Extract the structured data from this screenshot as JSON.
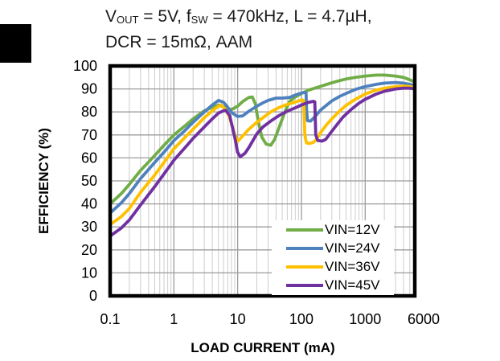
{
  "page": {
    "background": "#ffffff",
    "black_tab_marker": true
  },
  "chart_data": {
    "type": "line",
    "title": {
      "line1_segments": [
        {
          "text": "V"
        },
        {
          "text": "OUT",
          "sub": true
        },
        {
          "text": " = 5V, f"
        },
        {
          "text": "SW",
          "sub": true
        },
        {
          "text": " = 470kHz, L = 4.7µH,"
        }
      ],
      "line2": "DCR = 15mΩ, AAM"
    },
    "xlabel": "LOAD CURRENT (mA)",
    "ylabel": "EFFICIENCY (%)",
    "x_scale": "log",
    "xlim": [
      0.1,
      6000
    ],
    "ylim": [
      0,
      100
    ],
    "x_ticks": [
      {
        "value": 0.1,
        "label": "0.1"
      },
      {
        "value": 1,
        "label": "1"
      },
      {
        "value": 10,
        "label": "10"
      },
      {
        "value": 100,
        "label": "100"
      },
      {
        "value": 1000,
        "label": "1000"
      },
      {
        "value": 6000,
        "label": "6000",
        "dx": 11
      }
    ],
    "y_ticks": [
      {
        "value": 0,
        "label": "0"
      },
      {
        "value": 10,
        "label": "10"
      },
      {
        "value": 20,
        "label": "20"
      },
      {
        "value": 30,
        "label": "30"
      },
      {
        "value": 40,
        "label": "40"
      },
      {
        "value": 50,
        "label": "50"
      },
      {
        "value": 60,
        "label": "60"
      },
      {
        "value": 70,
        "label": "70"
      },
      {
        "value": 80,
        "label": "80"
      },
      {
        "value": 90,
        "label": "90"
      },
      {
        "value": 100,
        "label": "100"
      }
    ],
    "grid": {
      "show": true,
      "major_color": "#9b9b9b",
      "minor_color": "#cdcdcd",
      "border_color": "#000000"
    },
    "legend": {
      "position": "inside-bottom-right",
      "entries": [
        "VIN=12V",
        "VIN=24V",
        "VIN=36V",
        "VIN=45V"
      ]
    },
    "series": [
      {
        "name": "VIN=12V",
        "color": "#70AD47",
        "x": [
          0.1,
          0.15,
          0.2,
          0.3,
          0.5,
          0.7,
          1,
          1.5,
          2,
          3,
          4,
          5,
          6,
          7,
          8,
          10,
          12,
          15,
          17,
          19,
          21,
          24,
          28,
          33,
          38,
          45,
          55,
          65,
          80,
          100,
          130,
          170,
          250,
          350,
          500,
          700,
          1000,
          1500,
          2000,
          3000,
          4000,
          5000,
          6000
        ],
        "y": [
          40,
          44.5,
          48.5,
          54.5,
          61,
          65.5,
          70,
          74,
          77,
          80.5,
          82,
          83,
          82.2,
          81.2,
          81,
          82.5,
          84.5,
          86.3,
          86.5,
          83.5,
          76,
          69,
          66,
          65.5,
          68,
          73.5,
          80,
          84.5,
          86.5,
          88,
          89.5,
          90.5,
          92,
          93.2,
          94.3,
          95,
          95.6,
          96,
          96,
          95.6,
          95,
          94,
          93
        ]
      },
      {
        "name": "VIN=24V",
        "color": "#4E81BD",
        "x": [
          0.1,
          0.15,
          0.2,
          0.3,
          0.5,
          0.7,
          1,
          1.5,
          2,
          3,
          4,
          5,
          6,
          7,
          8,
          10,
          12,
          15,
          20,
          25,
          30,
          40,
          50,
          65,
          80,
          100,
          110,
          118,
          121,
          125,
          140,
          170,
          200,
          250,
          300,
          400,
          500,
          700,
          1000,
          1500,
          2000,
          3000,
          4000,
          5000,
          6000
        ],
        "y": [
          36,
          40.5,
          44.5,
          51,
          58,
          62.5,
          67.5,
          72,
          75.5,
          80,
          83,
          85,
          84.2,
          82,
          79.8,
          78,
          78.3,
          80.3,
          82.5,
          84,
          85,
          86,
          86,
          86.3,
          87.3,
          88.2,
          88.5,
          88.3,
          80,
          76.2,
          76,
          78.5,
          80.8,
          83,
          84.8,
          86.8,
          88,
          89.8,
          91,
          92,
          92.5,
          92.8,
          92.5,
          92,
          91.5
        ]
      },
      {
        "name": "VIN=36V",
        "color": "#FFC000",
        "x": [
          0.1,
          0.15,
          0.2,
          0.3,
          0.5,
          0.7,
          1,
          1.5,
          2,
          3,
          4,
          5,
          5.5,
          6.5,
          7.5,
          9,
          10,
          12,
          15,
          20,
          25,
          33,
          45,
          60,
          80,
          95,
          105,
          109,
          113,
          120,
          135,
          155,
          175,
          200,
          250,
          300,
          400,
          500,
          700,
          1000,
          1500,
          2000,
          3000,
          4000,
          5000,
          6000
        ],
        "y": [
          31,
          34.5,
          38,
          45,
          52.5,
          58,
          64,
          69,
          72.5,
          77.5,
          80.5,
          82.5,
          83,
          81,
          77.5,
          70,
          67.2,
          69.5,
          72.5,
          75.5,
          77.5,
          80,
          82,
          83.3,
          84.3,
          85,
          85.2,
          84.8,
          70,
          66.5,
          66.3,
          66.8,
          68.3,
          71,
          74.5,
          77,
          80.5,
          82.8,
          85.5,
          87.8,
          89.5,
          90.3,
          91,
          91.2,
          91,
          90.7
        ]
      },
      {
        "name": "VIN=45V",
        "color": "#7030A0",
        "x": [
          0.1,
          0.15,
          0.2,
          0.3,
          0.5,
          0.7,
          1,
          1.5,
          2,
          3,
          4,
          5,
          6,
          6.5,
          7.5,
          9,
          10,
          11,
          13,
          15,
          20,
          25,
          33,
          45,
          60,
          80,
          100,
          130,
          155,
          162,
          168,
          180,
          210,
          240,
          280,
          350,
          450,
          600,
          800,
          1000,
          1500,
          2000,
          3000,
          4000,
          5000,
          6000
        ],
        "y": [
          26,
          29.5,
          33,
          39.5,
          47.5,
          53,
          59,
          64.5,
          68.5,
          73.5,
          77,
          79.5,
          80.5,
          80.7,
          78.5,
          69,
          62.5,
          60.5,
          62,
          64.5,
          70.5,
          73.5,
          76,
          78.5,
          80.3,
          81.8,
          83,
          84.2,
          84.6,
          84.4,
          70,
          67.6,
          67.3,
          68,
          70.5,
          74,
          77.8,
          81,
          83.8,
          85.5,
          87.8,
          89,
          90,
          90.3,
          90.3,
          90
        ]
      }
    ]
  }
}
